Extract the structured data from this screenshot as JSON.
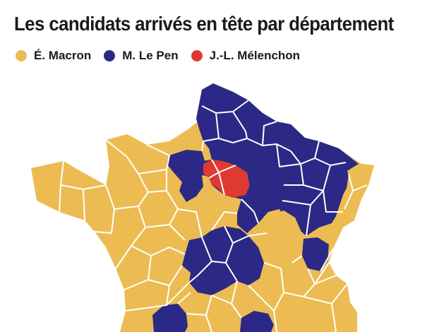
{
  "title": "Les candidats arrivés en tête par département",
  "legend": [
    {
      "label": "É. Macron",
      "color": "#ecbc52"
    },
    {
      "label": "M. Le Pen",
      "color": "#2b2985"
    },
    {
      "label": "J.-L. Mélenchon",
      "color": "#dd3a32"
    }
  ],
  "colors": {
    "macron": "#ecbc52",
    "le_pen": "#2b2985",
    "melenchon": "#dd3a32",
    "border": "#ffffff",
    "background": "#ffffff"
  }
}
